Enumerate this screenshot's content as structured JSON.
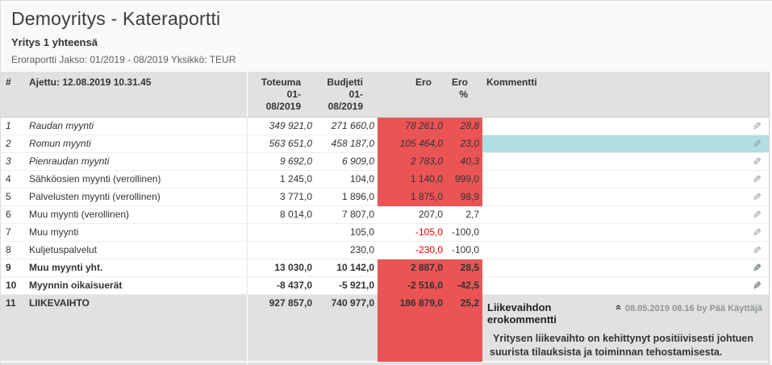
{
  "header": {
    "title": "Demoyritys - Kateraportti",
    "subtitle": "Yritys 1 yhteensä",
    "meta": "Eroraportti Jakso: 01/2019 - 08/2019 Yksikkö: TEUR"
  },
  "table": {
    "columns": {
      "num": "#",
      "name": "Ajettu: 12.08.2019 10.31.45",
      "actual": "Toteuma 01-\n08/2019",
      "budget": "Budjetti 01-\n08/2019",
      "diff": "Ero",
      "diff_pct": "Ero\n%",
      "comment": "Kommentti"
    },
    "rows": [
      {
        "num": "1",
        "name": "Raudan myynti",
        "actual": "349 921,0",
        "budget": "271 660,0",
        "diff": "78 261,0",
        "diff_pct": "28,8",
        "italic": true,
        "diff_highlight": true
      },
      {
        "num": "2",
        "name": "Romun myynti",
        "actual": "563 651,0",
        "budget": "458 187,0",
        "diff": "105 464,0",
        "diff_pct": "23,0",
        "italic": true,
        "diff_highlight": true,
        "comment_selected": true
      },
      {
        "num": "3",
        "name": "Pienraudan myynti",
        "actual": "9 692,0",
        "budget": "6 909,0",
        "diff": "2 783,0",
        "diff_pct": "40,3",
        "italic": true,
        "diff_highlight": true
      },
      {
        "num": "4",
        "name": "Sähköosien myynti (verollinen)",
        "actual": "1 245,0",
        "budget": "104,0",
        "diff": "1 140,0",
        "diff_pct": "999,0",
        "diff_highlight": true
      },
      {
        "num": "5",
        "name": "Palvelusten myynti (verollinen)",
        "actual": "3 771,0",
        "budget": "1 896,0",
        "diff": "1 875,0",
        "diff_pct": "98,9",
        "diff_highlight": true
      },
      {
        "num": "6",
        "name": "Muu myynti (verollinen)",
        "actual": "8 014,0",
        "budget": "7 807,0",
        "diff": "207,0",
        "diff_pct": "2,7"
      },
      {
        "num": "7",
        "name": "Muu myynti",
        "actual": "",
        "budget": "105,0",
        "diff": "-105,0",
        "diff_pct": "-100,0",
        "diff_negative": true
      },
      {
        "num": "8",
        "name": "Kuljetuspalvelut",
        "actual": "",
        "budget": "230,0",
        "diff": "-230,0",
        "diff_pct": "-100,0",
        "diff_negative": true
      },
      {
        "num": "9",
        "name": "Muu myynti yht.",
        "actual": "13 030,0",
        "budget": "10 142,0",
        "diff": "2 887,0",
        "diff_pct": "28,5",
        "bold": true,
        "diff_highlight": true
      },
      {
        "num": "10",
        "name": "Myynnin oikaisuerät",
        "actual": "-8 437,0",
        "budget": "-5 921,0",
        "diff": "-2 516,0",
        "diff_pct": "-42,5",
        "bold": true,
        "diff_highlight": true
      },
      {
        "num": "11",
        "name": "LIIKEVAIHTO",
        "actual": "927 857,0",
        "budget": "740 977,0",
        "diff": "186 879,0",
        "diff_pct": "25,2",
        "bold": true,
        "diff_highlight": true,
        "gray": true,
        "has_comment": true
      }
    ]
  },
  "comment_box": {
    "title": "Liikevaihdon erokommentti",
    "timestamp": "08.05.2019 08.16 by Pää Käyttäjä",
    "body": "Yritysen liikevaihto on kehittynyt positiivisesti johtuen suurista tilauksista ja toiminnan tehostamisesta."
  },
  "icons": {
    "edit": "✎",
    "collapse": "«"
  },
  "colors": {
    "highlight_red": "#ea5455",
    "negative_red": "#dd0000",
    "selected_blue": "#b0dee3",
    "summary_gray": "#e1e1df"
  }
}
